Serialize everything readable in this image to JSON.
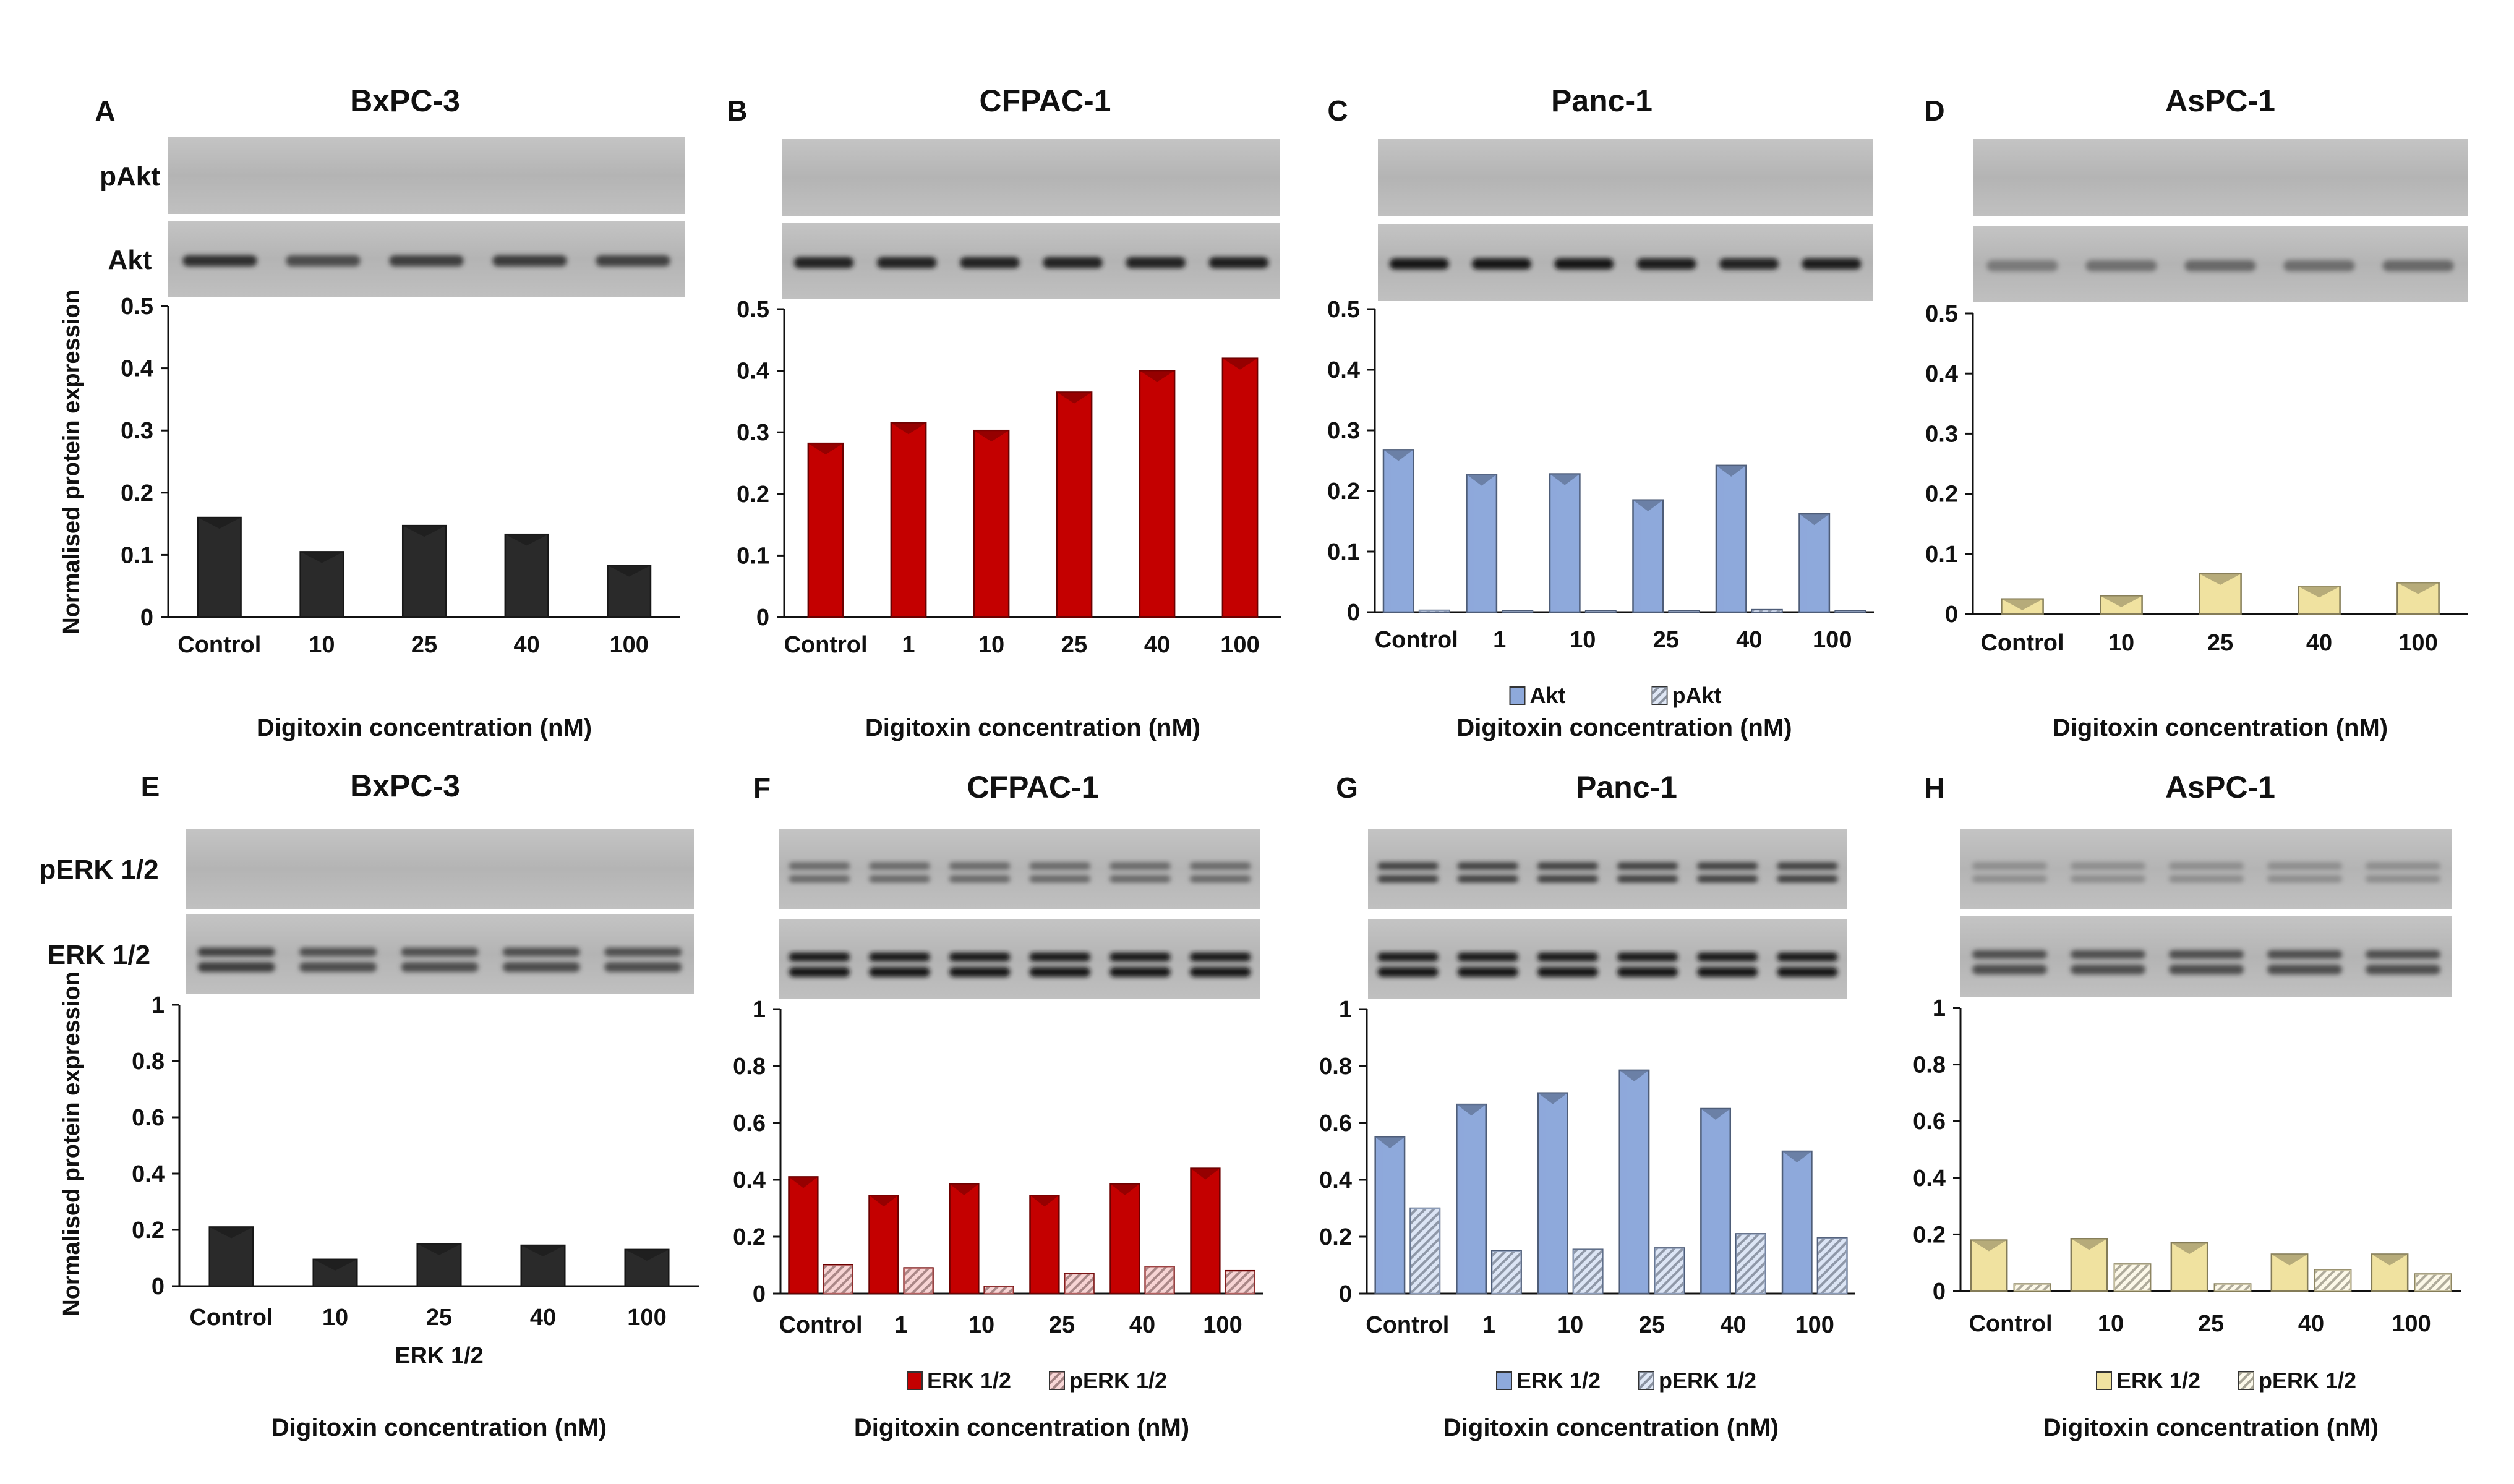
{
  "figure": {
    "xlabel": "Digitoxin concentration (nM)",
    "ylabel": "Normalised protein expression"
  },
  "colors": {
    "black": "#2a2a2a",
    "red": "#c40000",
    "blue": "#8ea9db",
    "yellow": "#f0e2a0",
    "black_light": "#666666",
    "red_light": "#f1b0b0",
    "blue_light": "#bfd0ec",
    "yellow_light": "#faf3d6",
    "axis": "#111111",
    "blot_bg": "#bfbfbf"
  },
  "chart_data": [
    {
      "type": "bar",
      "panel": "A",
      "title": "BxPC-3",
      "blot_labels": [
        "pAkt",
        "Akt"
      ],
      "categories": [
        "Control",
        "10",
        "25",
        "40",
        "100"
      ],
      "series": [
        {
          "name": "Akt",
          "color": "black",
          "values": [
            0.16,
            0.105,
            0.147,
            0.133,
            0.083
          ]
        }
      ],
      "ylim": [
        0,
        0.5
      ],
      "yticks": [
        "0",
        "0.1",
        "0.2",
        "0.3",
        "0.4",
        "0.5"
      ],
      "legend": [],
      "extra_label": "",
      "ylabel": "Normalised protein expression",
      "xlabel": "Digitoxin concentration (nM)"
    },
    {
      "type": "bar",
      "panel": "B",
      "title": "CFPAC-1",
      "blot_labels": [],
      "categories": [
        "Control",
        "1",
        "10",
        "25",
        "40",
        "100"
      ],
      "series": [
        {
          "name": "Akt",
          "color": "red",
          "values": [
            0.282,
            0.315,
            0.303,
            0.365,
            0.4,
            0.42
          ]
        }
      ],
      "ylim": [
        0,
        0.5
      ],
      "yticks": [
        "0",
        "0.1",
        "0.2",
        "0.3",
        "0.4",
        "0.5"
      ],
      "legend": [],
      "extra_label": "",
      "ylabel": "",
      "xlabel": "Digitoxin concentration (nM)"
    },
    {
      "type": "bar",
      "panel": "C",
      "title": "Panc-1",
      "blot_labels": [],
      "categories": [
        "Control",
        "1",
        "10",
        "25",
        "40",
        "100"
      ],
      "series": [
        {
          "name": "Akt",
          "color": "blue",
          "values": [
            0.268,
            0.227,
            0.228,
            0.185,
            0.242,
            0.162
          ]
        },
        {
          "name": "pAkt",
          "color": "blue_light",
          "values": [
            0.003,
            0.002,
            0.002,
            0.002,
            0.004,
            0.002
          ]
        }
      ],
      "ylim": [
        0,
        0.5
      ],
      "yticks": [
        "0",
        "0.1",
        "0.2",
        "0.3",
        "0.4",
        "0.5"
      ],
      "legend": [
        "Akt",
        "pAkt"
      ],
      "extra_label": "",
      "ylabel": "",
      "xlabel": "Digitoxin concentration (nM)"
    },
    {
      "type": "bar",
      "panel": "D",
      "title": "AsPC-1",
      "blot_labels": [],
      "categories": [
        "Control",
        "10",
        "25",
        "40",
        "100"
      ],
      "series": [
        {
          "name": "Akt",
          "color": "yellow",
          "values": [
            0.025,
            0.03,
            0.067,
            0.046,
            0.052
          ]
        }
      ],
      "ylim": [
        0,
        0.5
      ],
      "yticks": [
        "0",
        "0.1",
        "0.2",
        "0.3",
        "0.4",
        "0.5"
      ],
      "legend": [],
      "extra_label": "",
      "ylabel": "",
      "xlabel": "Digitoxin concentration (nM)"
    },
    {
      "type": "bar",
      "panel": "E",
      "title": "BxPC-3",
      "blot_labels": [
        "pERK 1/2",
        "ERK 1/2"
      ],
      "categories": [
        "Control",
        "10",
        "25",
        "40",
        "100"
      ],
      "series": [
        {
          "name": "ERK 1/2",
          "color": "black",
          "values": [
            0.21,
            0.095,
            0.15,
            0.145,
            0.13
          ]
        }
      ],
      "ylim": [
        0,
        1
      ],
      "yticks": [
        "0",
        "0.2",
        "0.4",
        "0.6",
        "0.8",
        "1"
      ],
      "legend": [],
      "extra_label": "ERK 1/2",
      "ylabel": "Normalised protein expression",
      "xlabel": "Digitoxin concentration (nM)"
    },
    {
      "type": "bar",
      "panel": "F",
      "title": "CFPAC-1",
      "blot_labels": [],
      "categories": [
        "Control",
        "1",
        "10",
        "25",
        "40",
        "100"
      ],
      "series": [
        {
          "name": "ERK 1/2",
          "color": "red",
          "values": [
            0.41,
            0.345,
            0.385,
            0.345,
            0.385,
            0.44
          ]
        },
        {
          "name": "pERK 1/2",
          "color": "red_light",
          "values": [
            0.1,
            0.09,
            0.025,
            0.07,
            0.095,
            0.08
          ]
        }
      ],
      "ylim": [
        0,
        1
      ],
      "yticks": [
        "0",
        "0.2",
        "0.4",
        "0.6",
        "0.8",
        "1"
      ],
      "legend": [
        "ERK 1/2",
        "pERK 1/2"
      ],
      "extra_label": "",
      "ylabel": "",
      "xlabel": "Digitoxin concentration (nM)"
    },
    {
      "type": "bar",
      "panel": "G",
      "title": "Panc-1",
      "blot_labels": [],
      "categories": [
        "Control",
        "1",
        "10",
        "25",
        "40",
        "100"
      ],
      "series": [
        {
          "name": "ERK 1/2",
          "color": "blue",
          "values": [
            0.55,
            0.665,
            0.705,
            0.785,
            0.65,
            0.5
          ]
        },
        {
          "name": "pERK 1/2",
          "color": "blue_light",
          "values": [
            0.3,
            0.15,
            0.155,
            0.16,
            0.21,
            0.195
          ]
        }
      ],
      "ylim": [
        0,
        1
      ],
      "yticks": [
        "0",
        "0.2",
        "0.4",
        "0.6",
        "0.8",
        "1"
      ],
      "legend": [
        "ERK 1/2",
        "pERK 1/2"
      ],
      "extra_label": "",
      "ylabel": "",
      "xlabel": "Digitoxin concentration (nM)"
    },
    {
      "type": "bar",
      "panel": "H",
      "title": "AsPC-1",
      "blot_labels": [],
      "categories": [
        "Control",
        "10",
        "25",
        "40",
        "100"
      ],
      "series": [
        {
          "name": "ERK 1/2",
          "color": "yellow",
          "values": [
            0.18,
            0.185,
            0.17,
            0.13,
            0.13
          ]
        },
        {
          "name": "pERK 1/2",
          "color": "yellow_light",
          "values": [
            0.025,
            0.095,
            0.025,
            0.075,
            0.06
          ]
        }
      ],
      "ylim": [
        0,
        1
      ],
      "yticks": [
        "0",
        "0.2",
        "0.4",
        "0.6",
        "0.8",
        "1"
      ],
      "legend": [
        "ERK 1/2",
        "pERK 1/2"
      ],
      "extra_label": "",
      "ylabel": "",
      "xlabel": "Digitoxin concentration (nM)"
    }
  ]
}
